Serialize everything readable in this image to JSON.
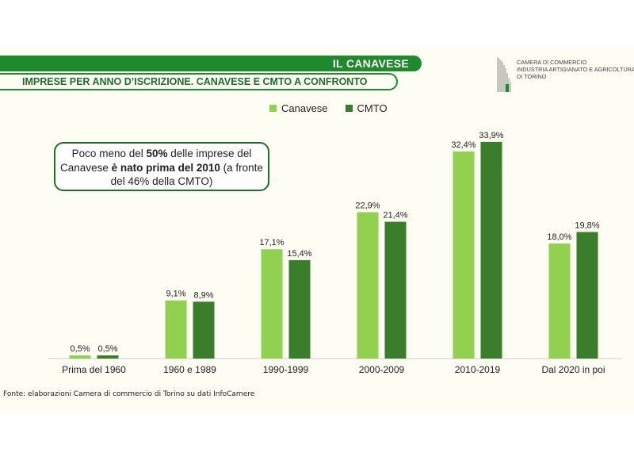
{
  "header": {
    "section_title": "IL CANAVESE",
    "subtitle": "IMPRESE PER ANNO D’ISCRIZIONE. CANAVESE E CMTO A CONFRONTO"
  },
  "logo": {
    "lines": [
      "CAMERA DI COMMERCIO",
      "INDUSTRIA ARTIGIANATO E AGRICOLTURA",
      "DI TORINO"
    ]
  },
  "callout": {
    "part1": "Poco meno del ",
    "bold1": "50%",
    "part2": " delle imprese del Canavese ",
    "bold2": "è nato prima del 2010",
    "part3": " (a fronte del 46% della CMTO)"
  },
  "source": "Fonte: elaborazioni Camera di commercio di Torino su dati InfoCamere",
  "colors": {
    "accent": "#1e8a2c",
    "canavese": "#92d050",
    "cmto": "#3a7d2a"
  },
  "chart_data": {
    "type": "bar",
    "categories": [
      "Prima del 1960",
      "1960 e 1989",
      "1990-1999",
      "2000-2009",
      "2010-2019",
      "Dal 2020 in poi"
    ],
    "series": [
      {
        "name": "Canavese",
        "values": [
          0.5,
          9.1,
          17.1,
          22.9,
          32.4,
          18.0
        ],
        "labels": [
          "0,5%",
          "9,1%",
          "17,1%",
          "22,9%",
          "32,4%",
          "18,0%"
        ]
      },
      {
        "name": "CMTO",
        "values": [
          0.5,
          8.9,
          15.4,
          21.4,
          33.9,
          19.8
        ],
        "labels": [
          "0,5%",
          "8,9%",
          "15,4%",
          "21,4%",
          "33,9%",
          "19,8%"
        ]
      }
    ],
    "ylim": [
      0,
      35
    ],
    "legend": "top-center",
    "grid": false,
    "data_labels": true
  }
}
